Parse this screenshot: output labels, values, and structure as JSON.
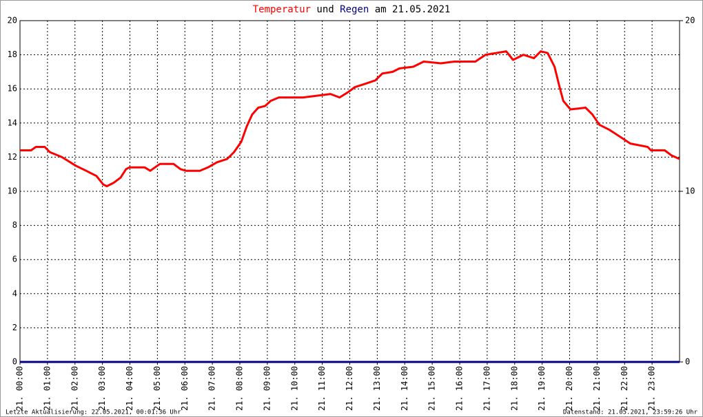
{
  "chart_data": {
    "type": "line",
    "title_connector": "und",
    "title_suffix": "am 21.05.2021",
    "footer_left": "Letzte Aktualisierung: 22.05.2021, 00:01:36 Uhr",
    "footer_right": "Datenstand: 21.05.2021, 23:59:26 Uhr",
    "grid": true,
    "xlim": [
      0,
      24
    ],
    "xticks": [
      {
        "value": 0,
        "label": "21. 00:00"
      },
      {
        "value": 1,
        "label": "21. 01:00"
      },
      {
        "value": 2,
        "label": "21. 02:00"
      },
      {
        "value": 3,
        "label": "21. 03:00"
      },
      {
        "value": 4,
        "label": "21. 04:00"
      },
      {
        "value": 5,
        "label": "21. 05:00"
      },
      {
        "value": 6,
        "label": "21. 06:00"
      },
      {
        "value": 7,
        "label": "21. 07:00"
      },
      {
        "value": 8,
        "label": "21. 08:00"
      },
      {
        "value": 9,
        "label": "21. 09:00"
      },
      {
        "value": 10,
        "label": "21. 10:00"
      },
      {
        "value": 11,
        "label": "21. 11:00"
      },
      {
        "value": 12,
        "label": "21. 12:00"
      },
      {
        "value": 13,
        "label": "21. 13:00"
      },
      {
        "value": 14,
        "label": "21. 14:00"
      },
      {
        "value": 15,
        "label": "21. 15:00"
      },
      {
        "value": 16,
        "label": "21. 16:00"
      },
      {
        "value": 17,
        "label": "21. 17:00"
      },
      {
        "value": 18,
        "label": "21. 18:00"
      },
      {
        "value": 19,
        "label": "21. 19:00"
      },
      {
        "value": 20,
        "label": "21. 20:00"
      },
      {
        "value": 21,
        "label": "21. 21:00"
      },
      {
        "value": 22,
        "label": "21. 22:00"
      },
      {
        "value": 23,
        "label": "21. 23:00"
      }
    ],
    "ylim": [
      0,
      20
    ],
    "yticks": [
      0,
      2,
      4,
      6,
      8,
      10,
      12,
      14,
      16,
      18,
      20
    ],
    "y2lim": [
      0,
      20
    ],
    "y2ticks": [
      0,
      10,
      20
    ],
    "series": [
      {
        "name": "Temperatur",
        "color": "#ff0000",
        "x": [
          0,
          0.4,
          0.58,
          0.9,
          1.08,
          1.53,
          2.03,
          2.41,
          2.78,
          3.03,
          3.16,
          3.41,
          3.66,
          3.86,
          3.98,
          4.54,
          4.74,
          4.91,
          5.09,
          5.59,
          5.84,
          6.04,
          6.54,
          6.84,
          7.17,
          7.54,
          7.79,
          8.05,
          8.25,
          8.45,
          8.67,
          8.92,
          9.12,
          9.42,
          9.8,
          10.3,
          10.8,
          11.3,
          11.63,
          11.93,
          12.18,
          12.56,
          12.93,
          13.18,
          13.56,
          13.81,
          14.31,
          14.69,
          15.31,
          15.81,
          16.57,
          16.94,
          17.32,
          17.69,
          17.94,
          18.32,
          18.7,
          18.95,
          19.2,
          19.45,
          19.62,
          19.77,
          20.03,
          20.58,
          20.83,
          21.08,
          21.45,
          21.83,
          22.21,
          22.84,
          22.96,
          23.46,
          23.71,
          23.99
        ],
        "values": [
          12.4,
          12.4,
          12.6,
          12.6,
          12.3,
          12.0,
          11.5,
          11.2,
          10.9,
          10.4,
          10.3,
          10.5,
          10.8,
          11.3,
          11.4,
          11.4,
          11.2,
          11.4,
          11.6,
          11.6,
          11.3,
          11.2,
          11.2,
          11.4,
          11.7,
          11.9,
          12.3,
          12.9,
          13.8,
          14.5,
          14.9,
          15.0,
          15.3,
          15.5,
          15.5,
          15.5,
          15.6,
          15.7,
          15.5,
          15.8,
          16.1,
          16.3,
          16.5,
          16.9,
          17.0,
          17.2,
          17.3,
          17.6,
          17.5,
          17.6,
          17.6,
          18.0,
          18.1,
          18.2,
          17.7,
          18.0,
          17.8,
          18.2,
          18.1,
          17.3,
          16.2,
          15.3,
          14.8,
          14.9,
          14.5,
          13.9,
          13.6,
          13.2,
          12.8,
          12.6,
          12.4,
          12.4,
          12.1,
          11.9
        ]
      },
      {
        "name": "Regen",
        "color": "#000080",
        "axis": "y2",
        "x": [
          0,
          24
        ],
        "values": [
          0,
          0
        ]
      }
    ]
  }
}
